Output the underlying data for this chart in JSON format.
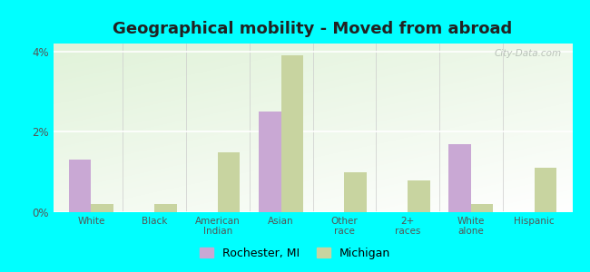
{
  "title": "Geographical mobility - Moved from abroad",
  "categories": [
    "White",
    "Black",
    "American\nIndian",
    "Asian",
    "Other\nrace",
    "2+\nraces",
    "White\nalone",
    "Hispanic"
  ],
  "rochester": [
    1.3,
    0.0,
    0.0,
    2.5,
    0.0,
    0.0,
    1.7,
    0.0
  ],
  "michigan": [
    0.2,
    0.2,
    1.5,
    3.9,
    1.0,
    0.8,
    0.2,
    1.1
  ],
  "rochester_color": "#c9a8d4",
  "michigan_color": "#c8d4a0",
  "outer_bg": "#00ffff",
  "ylim": [
    0,
    4.2
  ],
  "yticks": [
    0,
    2,
    4
  ],
  "ytick_labels": [
    "0%",
    "2%",
    "4%"
  ],
  "bar_width": 0.35,
  "legend_rochester": "Rochester, MI",
  "legend_michigan": "Michigan",
  "title_fontsize": 13,
  "watermark": "City-Data.com"
}
